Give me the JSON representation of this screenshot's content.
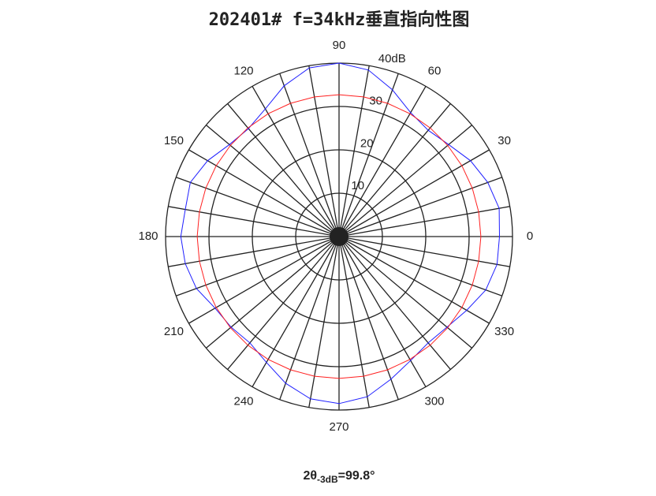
{
  "chart_data": {
    "type": "polar",
    "title": "202401# f=34kHz垂直指向性图",
    "annotation": {
      "prefix": "2θ",
      "subscript": "-3dB",
      "suffix": "=99.8°"
    },
    "theta": [
      0,
      10,
      20,
      30,
      40,
      50,
      60,
      70,
      80,
      90,
      100,
      110,
      120,
      130,
      140,
      150,
      160,
      170,
      180,
      190,
      200,
      210,
      220,
      230,
      240,
      250,
      260,
      270,
      280,
      290,
      300,
      310,
      320,
      330,
      340,
      350
    ],
    "series": [
      {
        "color": "#1f1fff",
        "values": [
          37,
          37.5,
          36.5,
          35,
          33,
          32,
          33,
          36,
          39,
          40,
          39.5,
          37,
          34,
          32.5,
          33,
          35,
          36.5,
          36,
          36.5,
          36,
          35,
          33,
          32.5,
          32,
          33.5,
          36,
          38,
          38.5,
          37.5,
          35,
          33,
          32,
          32.5,
          34,
          36,
          37
        ]
      },
      {
        "color": "#ff2020",
        "values": [
          32.7,
          32.7,
          32.7,
          32.7,
          32.7,
          32.7,
          32.7,
          32.7,
          32.7,
          32.7,
          32.7,
          32.7,
          32.7,
          32.7,
          32.7,
          32.7,
          32.7,
          32.7,
          32.7,
          32.7,
          32.7,
          32.7,
          32.7,
          32.7,
          32.7,
          32.7,
          32.7,
          32.7,
          32.7,
          32.7,
          32.7,
          32.7,
          32.7,
          32.7,
          32.7,
          32.7
        ]
      }
    ],
    "rlim": [
      0,
      40
    ],
    "rticks": [
      10,
      20,
      30,
      {
        "value": 40,
        "label": "40dB"
      }
    ],
    "thetaticks": [
      0,
      30,
      60,
      90,
      120,
      150,
      180,
      210,
      240,
      270,
      300,
      330
    ]
  }
}
